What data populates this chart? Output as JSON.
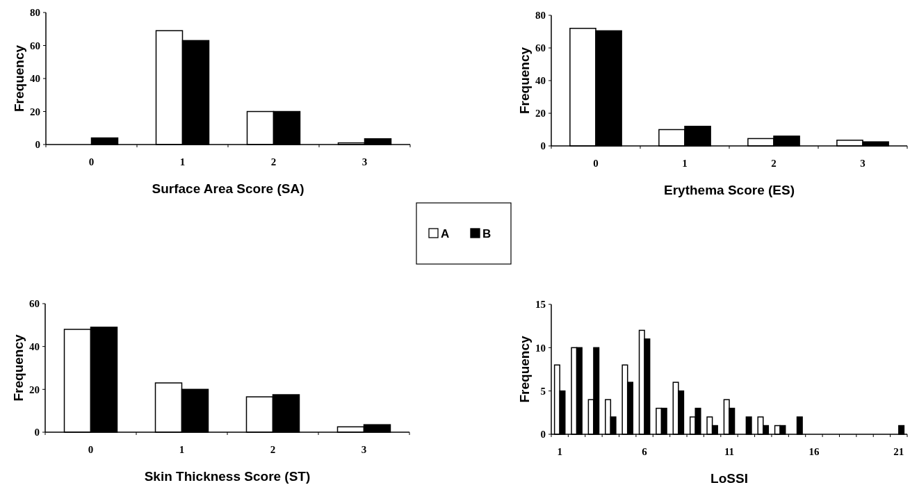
{
  "chart_data": [
    {
      "type": "bar",
      "xlabel": "Surface Area Score (SA)",
      "ylabel": "Frequency",
      "categories": [
        "0",
        "1",
        "2",
        "3"
      ],
      "ylim": [
        0,
        80
      ],
      "yticks": [
        0,
        20,
        40,
        60,
        80
      ],
      "legend": "bottom right",
      "series": [
        {
          "name": "A",
          "color": "#ffffff",
          "values": [
            0,
            69,
            20,
            1
          ]
        },
        {
          "name": "B",
          "color": "#000000",
          "values": [
            4,
            63,
            20,
            3.5
          ]
        }
      ]
    },
    {
      "type": "bar",
      "xlabel": "Erythema Score (ES)",
      "ylabel": "Frequency",
      "categories": [
        "0",
        "1",
        "2",
        "3"
      ],
      "ylim": [
        0,
        80
      ],
      "yticks": [
        0,
        20,
        40,
        60,
        80
      ],
      "series": [
        {
          "color": "#ffffff",
          "values": [
            72,
            10,
            4.5,
            3.5
          ]
        },
        {
          "color": "#000000",
          "values": [
            70.5,
            12,
            6,
            2.5
          ]
        }
      ]
    },
    {
      "type": "bar",
      "xlabel": "Skin Thickness Score (ST)",
      "ylabel": "Frequency",
      "categories": [
        "0",
        "1",
        "2",
        "3"
      ],
      "ylim": [
        0,
        60
      ],
      "yticks": [
        0,
        20,
        40,
        60
      ],
      "series": [
        {
          "color": "#ffffff",
          "values": [
            48,
            23,
            16.5,
            2.5
          ]
        },
        {
          "color": "#000000",
          "values": [
            49,
            20,
            17.5,
            3.5
          ]
        }
      ]
    },
    {
      "type": "bar",
      "xlabel": "LoSSI",
      "ylabel": "Frequency",
      "categories": [
        "1",
        null,
        null,
        null,
        null,
        "6",
        null,
        null,
        null,
        null,
        "11",
        null,
        null,
        null,
        null,
        "16",
        null,
        null,
        null,
        null,
        "21"
      ],
      "ylim": [
        0,
        15
      ],
      "yticks": [
        0,
        5,
        10,
        15
      ],
      "series": [
        {
          "color": "#ffffff",
          "values": [
            8,
            10,
            4,
            4,
            8,
            12,
            3,
            6,
            2,
            2,
            4,
            0,
            2,
            1,
            0,
            0,
            0,
            0,
            0,
            0,
            0
          ]
        },
        {
          "color": "#000000",
          "values": [
            5,
            10,
            10,
            2,
            6,
            11,
            3,
            5,
            3,
            1,
            3,
            2,
            1,
            1,
            2,
            0,
            0,
            0,
            0,
            0,
            1
          ]
        }
      ]
    }
  ]
}
